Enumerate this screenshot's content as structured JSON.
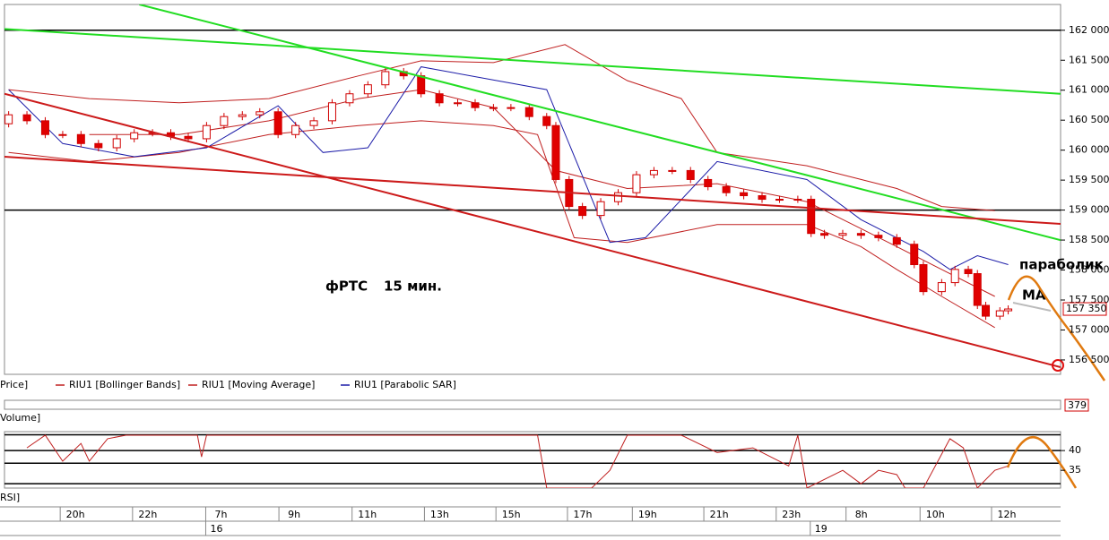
{
  "chart_data": [
    {
      "type": "candlestick",
      "title": "Price]",
      "xlim": [
        0,
        127
      ],
      "ylim": [
        156260,
        162430
      ],
      "yticks": [
        {
          "value": 156500,
          "label": "156 500"
        },
        {
          "value": 157000,
          "label": "157 000"
        },
        {
          "value": 157500,
          "label": "157 500"
        },
        {
          "value": 158000,
          "label": "158 000"
        },
        {
          "value": 158500,
          "label": "158 500"
        },
        {
          "value": 159000,
          "label": "159 000"
        },
        {
          "value": 159500,
          "label": "159 500"
        },
        {
          "value": 160000,
          "label": "160 000"
        },
        {
          "value": 160500,
          "label": "160 500"
        },
        {
          "value": 161000,
          "label": "161 000"
        },
        {
          "value": 161500,
          "label": "161 500"
        },
        {
          "value": 162000,
          "label": "162 000"
        }
      ],
      "xticks": [
        {
          "value": 6.7,
          "label": "20h"
        },
        {
          "value": 15.4,
          "label": "22h"
        },
        {
          "value": 24.2,
          "label": "7h"
        },
        {
          "value": 33.0,
          "label": "9h"
        },
        {
          "value": 41.8,
          "label": "11h"
        },
        {
          "value": 50.5,
          "label": "13h"
        },
        {
          "value": 59.1,
          "label": "15h"
        },
        {
          "value": 67.7,
          "label": "17h"
        },
        {
          "value": 75.5,
          "label": "19h"
        },
        {
          "value": 84.1,
          "label": "21h"
        },
        {
          "value": 92.8,
          "label": "23h"
        },
        {
          "value": 101.2,
          "label": "8h"
        },
        {
          "value": 110.1,
          "label": "10h"
        },
        {
          "value": 118.7,
          "label": "12h"
        }
      ],
      "day_ticks": [
        {
          "value": 24.2,
          "label": "16"
        },
        {
          "value": 96.9,
          "label": "19"
        }
      ],
      "up_color": "#ffffff",
      "down_color": "#e00000",
      "outline_color": "#d00000",
      "x": [
        0.5,
        2.7,
        4.9,
        7,
        9.2,
        11.3,
        13.5,
        15.6,
        17.8,
        20,
        22.1,
        24.3,
        26.4,
        28.6,
        30.7,
        32.9,
        35,
        37.2,
        39.4,
        41.5,
        43.7,
        45.8,
        48,
        50.1,
        52.3,
        54.5,
        56.6,
        58.8,
        60.9,
        63.1,
        65.2,
        66.3,
        67.9,
        69.5,
        71.7,
        73.8,
        76,
        78.1,
        80.3,
        82.5,
        84.6,
        86.8,
        88.9,
        91.1,
        93.2,
        95.4,
        97,
        98.6,
        100.8,
        103,
        105.1,
        107.3,
        109.4,
        110.5,
        112.7,
        114.3,
        115.9,
        117,
        118,
        119.7,
        120.7
      ],
      "open": [
        160440,
        160590,
        160490,
        160260,
        160260,
        160110,
        160040,
        160190,
        160290,
        160290,
        160230,
        160190,
        160410,
        160560,
        160590,
        160640,
        160260,
        160410,
        160490,
        160790,
        160940,
        161090,
        161310,
        161240,
        160940,
        160790,
        160790,
        160710,
        160710,
        160710,
        160560,
        160410,
        159510,
        159060,
        158910,
        159140,
        159290,
        159590,
        159660,
        159660,
        159510,
        159390,
        159290,
        159240,
        159180,
        159180,
        159180,
        158610,
        158580,
        158610,
        158580,
        158540,
        158430,
        158090,
        157640,
        157790,
        158010,
        157940,
        157410,
        157230,
        157320
      ],
      "high": [
        160650,
        160650,
        160550,
        160320,
        160320,
        160170,
        160250,
        160350,
        160350,
        160350,
        160290,
        160470,
        160620,
        160650,
        160700,
        160700,
        160470,
        160550,
        160850,
        161000,
        161150,
        161370,
        161370,
        161300,
        161000,
        160850,
        160850,
        160770,
        160770,
        160770,
        160620,
        160470,
        159570,
        159120,
        159200,
        159350,
        159650,
        159720,
        159720,
        159720,
        159570,
        159450,
        159350,
        159300,
        159240,
        159240,
        159240,
        158670,
        158670,
        158670,
        158640,
        158600,
        158490,
        158150,
        157850,
        158070,
        158070,
        158000,
        157470,
        157380,
        157410
      ],
      "low": [
        160380,
        160430,
        160200,
        160200,
        160050,
        159980,
        159980,
        160130,
        160230,
        160170,
        160130,
        160130,
        160350,
        160500,
        160530,
        160200,
        160200,
        160350,
        160430,
        160730,
        160880,
        161030,
        161180,
        160880,
        160730,
        160730,
        160650,
        160650,
        160650,
        160500,
        160350,
        159450,
        159000,
        158850,
        158850,
        159080,
        159230,
        159530,
        159600,
        159450,
        159330,
        159230,
        159180,
        159120,
        159120,
        159120,
        158550,
        158520,
        158520,
        158520,
        158480,
        158370,
        158030,
        157580,
        157580,
        157730,
        157880,
        157350,
        157170,
        157170,
        157260
      ],
      "close": [
        160590,
        160490,
        160260,
        160260,
        160110,
        160040,
        160190,
        160290,
        160290,
        160230,
        160190,
        160410,
        160560,
        160590,
        160640,
        160260,
        160410,
        160490,
        160790,
        160940,
        161090,
        161310,
        161240,
        160940,
        160790,
        160790,
        160710,
        160710,
        160710,
        160560,
        160410,
        159510,
        159060,
        158910,
        159140,
        159290,
        159590,
        159660,
        159660,
        159510,
        159390,
        159290,
        159240,
        159180,
        159180,
        159180,
        158610,
        158580,
        158610,
        158580,
        158540,
        158430,
        158090,
        157640,
        157790,
        158010,
        157940,
        157410,
        157230,
        157320,
        157350
      ],
      "last_price": {
        "value": 157350,
        "label": "157 350"
      },
      "levels": [
        162000,
        159000
      ],
      "level_color": "#000000",
      "trendlines": [
        {
          "color": "#22dd22",
          "x": [
            0,
            127
          ],
          "values": [
            162020,
            160940
          ]
        },
        {
          "color": "#22dd22",
          "x": [
            16.2,
            127
          ],
          "values": [
            162430,
            158500
          ]
        },
        {
          "color": "#cc1a1a",
          "x": [
            0,
            127
          ],
          "values": [
            160940,
            156380
          ]
        },
        {
          "color": "#cc1a1a",
          "x": [
            0,
            127
          ],
          "values": [
            159890,
            158770
          ]
        }
      ],
      "series": [
        {
          "name": "RIU1 [Bollinger Bands]",
          "color": "#c02020",
          "lines": [
            {
              "x": [
                0.5,
                10.2,
                21.0,
                31.8,
                42.6,
                50.1,
                58.8,
                67.4,
                74.9,
                81.4,
                85.7,
                96.5,
                107.3,
                112.7,
                119.1
              ],
              "values": [
                161010,
                160860,
                160790,
                160860,
                161240,
                161490,
                161460,
                161760,
                161160,
                160860,
                159960,
                159740,
                159360,
                159060,
                158990
              ]
            },
            {
              "x": [
                0.5,
                10.2,
                21.0,
                31.8,
                42.6,
                50.1,
                58.8,
                64.1,
                68.5,
                74.9,
                85.7,
                96.5,
                103.0,
                107.3,
                112.7,
                119.1
              ],
              "values": [
                159960,
                159810,
                159960,
                160260,
                160410,
                160490,
                160410,
                160260,
                158540,
                158460,
                158760,
                158760,
                158390,
                158010,
                157560,
                157040
              ]
            }
          ]
        },
        {
          "name": "RIU1 [Moving Average]",
          "color": "#c02020",
          "lines": [
            {
              "x": [
                10.2,
                21.0,
                31.8,
                42.6,
                50.1,
                58.8,
                66.3,
                74.9,
                85.7,
                96.5,
                103.0,
                107.3,
                112.7,
                119.1
              ],
              "values": [
                160260,
                160260,
                160490,
                160860,
                161010,
                160710,
                159660,
                159360,
                159440,
                159140,
                158690,
                158390,
                158010,
                157560
              ]
            }
          ]
        },
        {
          "name": "RIU1 [Parabolic SAR]",
          "color": "#1c1ca8",
          "lines": [
            {
              "x": [
                0.5,
                7.0,
                15.6,
                24.3,
                32.9,
                38.3,
                43.7,
                50.1,
                65.2,
                72.8,
                77.1,
                85.7,
                96.5,
                103.0,
                110.5,
                113.7,
                117.0,
                120.7
              ],
              "values": [
                161010,
                160110,
                159890,
                160040,
                160740,
                159960,
                160040,
                161390,
                161010,
                158460,
                158540,
                159810,
                159510,
                158840,
                158310,
                158010,
                158240,
                158090
              ]
            }
          ]
        }
      ],
      "annotations": [
        "фРТС",
        "15 мин.",
        "параболик",
        "МА"
      ]
    },
    {
      "type": "volume",
      "title": "Volume]",
      "last_value": 379
    },
    {
      "type": "line",
      "title": "RSI]",
      "xlim": [
        0,
        127
      ],
      "ylim": [
        30.5,
        44.8
      ],
      "yticks": [
        35,
        40
      ],
      "levels": [
        44,
        40,
        36.8,
        31.6
      ],
      "series": [
        {
          "color": "#c02020",
          "x": [
            2.7,
            4.9,
            7.0,
            9.2,
            10.2,
            12.4,
            14.6,
            23.2,
            23.7,
            24.3,
            64.1,
            65.2,
            70.6,
            72.8,
            74.9,
            81.4,
            85.7,
            90.0,
            94.3,
            95.4,
            96.5,
            100.8,
            103.0,
            105.1,
            107.3,
            108.3,
            110.5,
            113.7,
            115.3,
            117.0,
            119.1,
            120.7
          ],
          "values": [
            40.7,
            43.9,
            37.3,
            41.8,
            37.3,
            43.0,
            43.9,
            43.9,
            38.4,
            43.9,
            43.9,
            30.5,
            30.5,
            35,
            43.9,
            43.9,
            39.5,
            40.7,
            36.1,
            43.9,
            30.5,
            35,
            31.6,
            35,
            33.9,
            30.5,
            30.5,
            43.0,
            40.7,
            30.5,
            35,
            36.1
          ]
        }
      ]
    }
  ]
}
